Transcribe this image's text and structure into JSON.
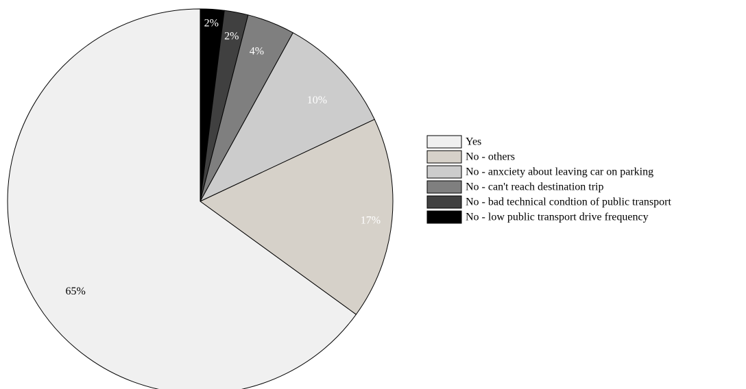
{
  "chart_data": {
    "type": "pie",
    "start_angle": "top",
    "direction": "clockwise",
    "legend_placement": "right",
    "slices": [
      {
        "name": "No - low public transport drive frequency",
        "value": 2,
        "label": "2%",
        "color": "#000000",
        "label_color": "#ffffff"
      },
      {
        "name": "No - bad technical condtion of public transport",
        "value": 2,
        "label": "2%",
        "color": "#404040",
        "label_color": "#ffffff"
      },
      {
        "name": "No - can't reach destination trip",
        "value": 4,
        "label": "4%",
        "color": "#7f7f7f",
        "label_color": "#ffffff"
      },
      {
        "name": "No - anxciety about leaving car on parking",
        "value": 10,
        "label": "10%",
        "color": "#cccccc",
        "label_color": "#ffffff"
      },
      {
        "name": "No - others",
        "value": 17,
        "label": "17%",
        "color": "#d6d1c9",
        "label_color": "#ffffff"
      },
      {
        "name": "Yes",
        "value": 65,
        "label": "65%",
        "color": "#f0f0f0",
        "label_color": "#000000"
      }
    ],
    "legend_order": [
      "Yes",
      "No - others",
      "No - anxciety about leaving car on parking",
      "No - can't reach destination trip",
      "No - bad technical condtion of public transport",
      "No - low public transport drive frequency"
    ]
  }
}
